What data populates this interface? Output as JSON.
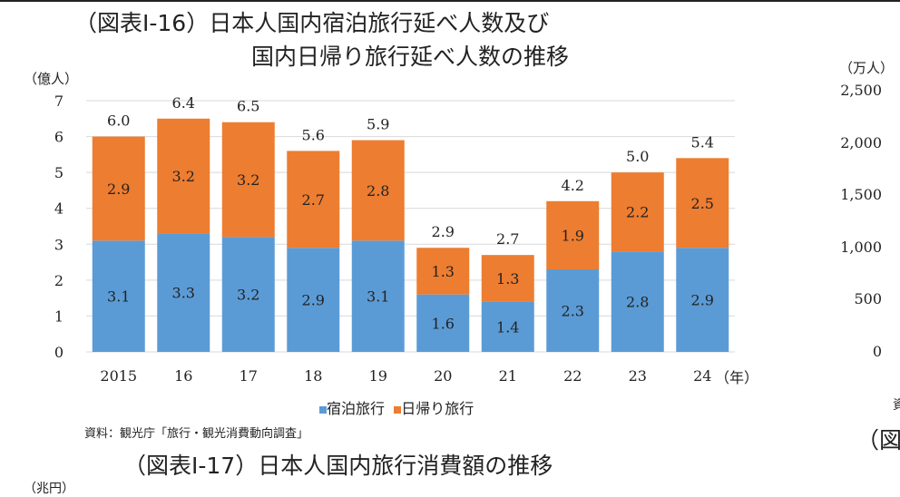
{
  "title_line1": "（図表Ⅰ-16）日本人国内宿泊旅行延べ人数及び",
  "title_line2": "国内日帰り旅行延べ人数の推移",
  "source": "資料：観光庁「旅行・観光消費動向調査」",
  "next_title": "（図表Ⅰ-17）日本人国内旅行消費額の推移",
  "next_unit": "（兆円）",
  "right_chart": {
    "unit": "（万人）",
    "ticks": [
      "2,500",
      "2,000",
      "1,500",
      "1,000",
      "500",
      "0"
    ],
    "partial_source": "資",
    "partial_title": "（図表"
  },
  "chart_data": {
    "type": "bar",
    "stacked": true,
    "ylabel": "（億人）",
    "xlabel_unit": "（年）",
    "ylim": [
      0,
      7
    ],
    "yticks": [
      0,
      1,
      2,
      3,
      4,
      5,
      6,
      7
    ],
    "grid": true,
    "legend_position": "bottom",
    "categories": [
      "2015",
      "16",
      "17",
      "18",
      "19",
      "20",
      "21",
      "22",
      "23",
      "24"
    ],
    "totals": [
      "6.0",
      "6.4",
      "6.5",
      "5.6",
      "5.9",
      "2.9",
      "2.7",
      "4.2",
      "5.0",
      "5.4"
    ],
    "series": [
      {
        "name": "宿泊旅行",
        "color": "#5b9bd5",
        "values": [
          3.1,
          3.3,
          3.2,
          2.9,
          3.1,
          1.6,
          1.4,
          2.3,
          2.8,
          2.9
        ]
      },
      {
        "name": "日帰り旅行",
        "color": "#ed7d31",
        "values": [
          2.9,
          3.2,
          3.2,
          2.7,
          2.8,
          1.3,
          1.3,
          1.9,
          2.2,
          2.5
        ]
      }
    ]
  }
}
